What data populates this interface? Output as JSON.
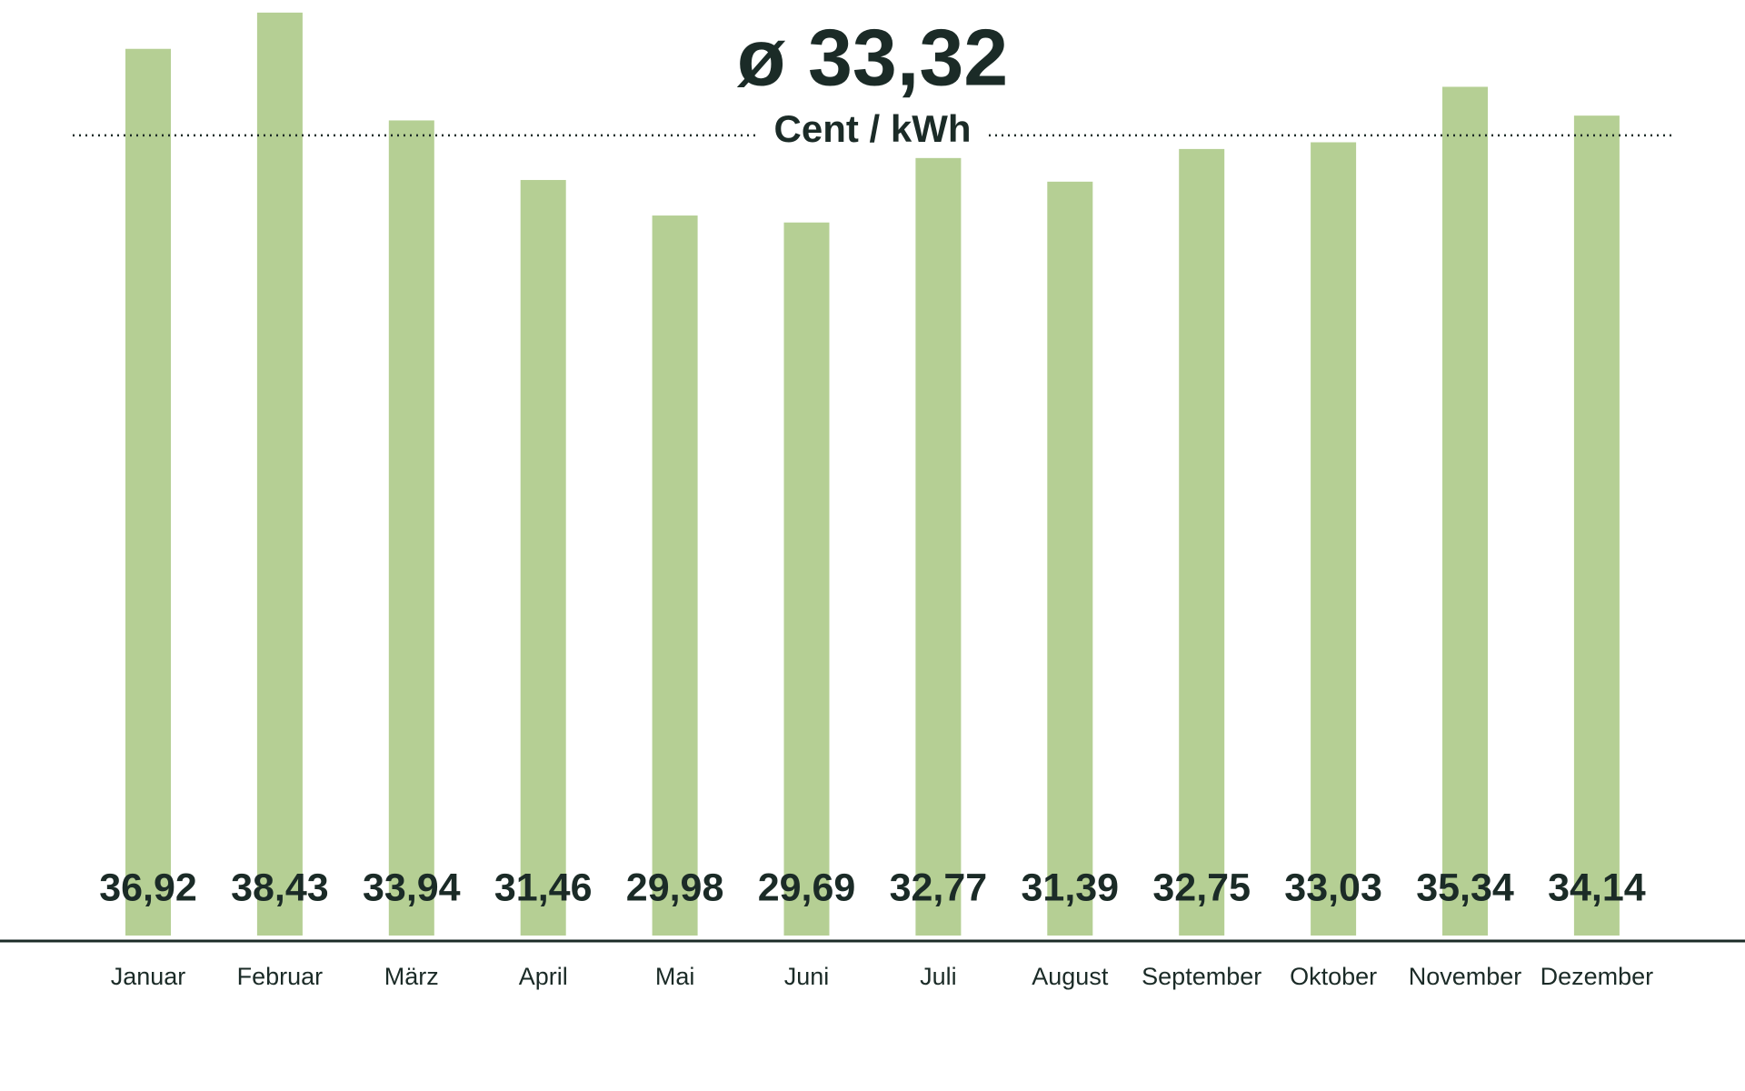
{
  "chart_data": {
    "type": "bar",
    "average": 33.32,
    "average_label": "ø 33,32",
    "unit": "Cent / kWh",
    "categories": [
      "Januar",
      "Februar",
      "März",
      "April",
      "Mai",
      "Juni",
      "Juli",
      "August",
      "September",
      "Oktober",
      "November",
      "Dezember"
    ],
    "values": [
      36.92,
      38.43,
      33.94,
      31.46,
      29.98,
      29.69,
      32.77,
      31.39,
      32.75,
      33.03,
      35.34,
      34.14
    ],
    "value_labels": [
      "36,92",
      "38,43",
      "33,94",
      "31,46",
      "29,98",
      "29,69",
      "32,77",
      "31,39",
      "32,75",
      "33,03",
      "35,34",
      "34,14"
    ],
    "color": "#b5cf94",
    "ylim": [
      0,
      38.5
    ]
  }
}
